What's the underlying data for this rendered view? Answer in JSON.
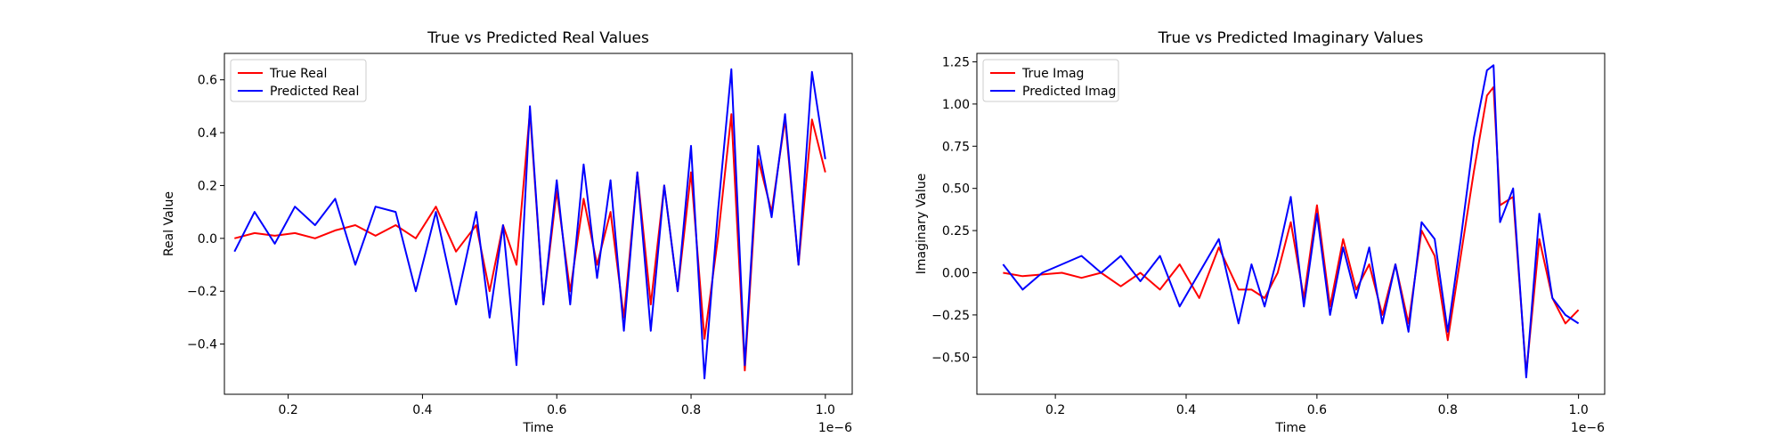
{
  "chart_data": [
    {
      "type": "line",
      "title": "True vs Predicted Real Values",
      "xlabel": "Time",
      "ylabel": "Real Value",
      "x_scale_label": "1e−6",
      "xlim": [
        0.105,
        1.04
      ],
      "ylim": [
        -0.59,
        0.7
      ],
      "xticks": [
        0.2,
        0.4,
        0.6,
        0.8,
        1.0
      ],
      "xtick_labels": [
        "0.2",
        "0.4",
        "0.6",
        "0.8",
        "1.0"
      ],
      "yticks": [
        -0.4,
        -0.2,
        0.0,
        0.2,
        0.4,
        0.6
      ],
      "ytick_labels": [
        "−0.4",
        "−0.2",
        "0.0",
        "0.2",
        "0.4",
        "0.6"
      ],
      "legend_position": "top-left",
      "x": [
        0.12,
        0.15,
        0.18,
        0.21,
        0.24,
        0.27,
        0.3,
        0.33,
        0.36,
        0.39,
        0.42,
        0.45,
        0.48,
        0.5,
        0.52,
        0.54,
        0.56,
        0.58,
        0.6,
        0.62,
        0.64,
        0.66,
        0.68,
        0.7,
        0.72,
        0.74,
        0.76,
        0.78,
        0.8,
        0.82,
        0.84,
        0.86,
        0.88,
        0.9,
        0.92,
        0.94,
        0.96,
        0.98,
        1.0
      ],
      "series": [
        {
          "name": "True Real",
          "color": "#ff0000",
          "values": [
            0.0,
            0.02,
            0.01,
            0.02,
            0.0,
            0.03,
            0.05,
            0.01,
            0.05,
            0.0,
            0.12,
            -0.05,
            0.05,
            -0.2,
            0.05,
            -0.1,
            0.48,
            -0.25,
            0.18,
            -0.2,
            0.15,
            -0.1,
            0.1,
            -0.3,
            0.25,
            -0.25,
            0.2,
            -0.2,
            0.25,
            -0.38,
            0.0,
            0.47,
            -0.5,
            0.3,
            0.1,
            0.45,
            -0.1,
            0.45,
            0.25
          ]
        },
        {
          "name": "Predicted Real",
          "color": "#0000ff",
          "values": [
            -0.05,
            0.1,
            -0.02,
            0.12,
            0.05,
            0.15,
            -0.1,
            0.12,
            0.1,
            -0.2,
            0.1,
            -0.25,
            0.1,
            -0.3,
            0.05,
            -0.48,
            0.5,
            -0.25,
            0.22,
            -0.25,
            0.28,
            -0.15,
            0.22,
            -0.35,
            0.25,
            -0.35,
            0.2,
            -0.2,
            0.35,
            -0.53,
            0.1,
            0.64,
            -0.48,
            0.35,
            0.08,
            0.47,
            -0.1,
            0.63,
            0.3
          ]
        }
      ]
    },
    {
      "type": "line",
      "title": "True vs Predicted Imaginary Values",
      "xlabel": "Time",
      "ylabel": "Imaginary Value",
      "x_scale_label": "1e−6",
      "xlim": [
        0.08,
        1.04
      ],
      "ylim": [
        -0.72,
        1.3
      ],
      "xticks": [
        0.2,
        0.4,
        0.6,
        0.8,
        1.0
      ],
      "xtick_labels": [
        "0.2",
        "0.4",
        "0.6",
        "0.8",
        "1.0"
      ],
      "yticks": [
        -0.5,
        -0.25,
        0.0,
        0.25,
        0.5,
        0.75,
        1.0,
        1.25
      ],
      "ytick_labels": [
        "−0.50",
        "−0.25",
        "0.00",
        "0.25",
        "0.50",
        "0.75",
        "1.00",
        "1.25"
      ],
      "legend_position": "top-left",
      "x": [
        0.12,
        0.15,
        0.18,
        0.21,
        0.24,
        0.27,
        0.3,
        0.33,
        0.36,
        0.39,
        0.42,
        0.45,
        0.48,
        0.5,
        0.52,
        0.54,
        0.56,
        0.58,
        0.6,
        0.62,
        0.64,
        0.66,
        0.68,
        0.7,
        0.72,
        0.74,
        0.76,
        0.78,
        0.8,
        0.82,
        0.84,
        0.86,
        0.87,
        0.88,
        0.9,
        0.92,
        0.94,
        0.96,
        0.98,
        1.0
      ],
      "series": [
        {
          "name": "True Imag",
          "color": "#ff0000",
          "values": [
            0.0,
            -0.02,
            -0.01,
            0.0,
            -0.03,
            0.0,
            -0.08,
            0.0,
            -0.1,
            0.05,
            -0.15,
            0.15,
            -0.1,
            -0.1,
            -0.15,
            0.0,
            0.3,
            -0.15,
            0.4,
            -0.2,
            0.2,
            -0.1,
            0.05,
            -0.25,
            0.05,
            -0.3,
            0.25,
            0.1,
            -0.4,
            0.1,
            0.6,
            1.05,
            1.1,
            0.4,
            0.45,
            -0.6,
            0.2,
            -0.15,
            -0.3,
            -0.22
          ]
        },
        {
          "name": "Predicted Imag",
          "color": "#0000ff",
          "values": [
            0.05,
            -0.1,
            0.0,
            0.05,
            0.1,
            0.0,
            0.1,
            -0.05,
            0.1,
            -0.2,
            0.0,
            0.2,
            -0.3,
            0.05,
            -0.2,
            0.1,
            0.45,
            -0.2,
            0.35,
            -0.25,
            0.15,
            -0.15,
            0.15,
            -0.3,
            0.05,
            -0.35,
            0.3,
            0.2,
            -0.35,
            0.2,
            0.8,
            1.2,
            1.23,
            0.3,
            0.5,
            -0.62,
            0.35,
            -0.15,
            -0.25,
            -0.3
          ]
        }
      ]
    }
  ]
}
